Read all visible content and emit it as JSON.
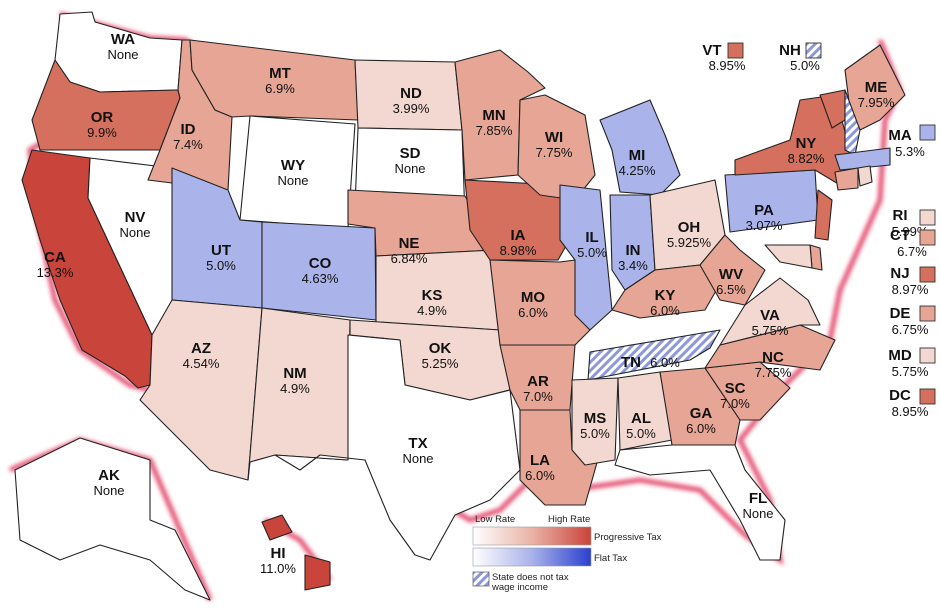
{
  "colors": {
    "none": "#ffffff",
    "flat": "#aab4ea",
    "flat_light": "#cfd4f2",
    "hatch": "#7f8fd6",
    "shadow": "#e0305a",
    "low": "#f3d8d1",
    "mid": "#e6a595",
    "high": "#d5705e",
    "highest": "#c9443a"
  },
  "states": [
    {
      "abbr": "WA",
      "rate": "None",
      "type": "none"
    },
    {
      "abbr": "OR",
      "rate": "9.9%",
      "type": "progressive",
      "level": "high"
    },
    {
      "abbr": "CA",
      "rate": "13.3%",
      "type": "progressive",
      "level": "highest"
    },
    {
      "abbr": "NV",
      "rate": "None",
      "type": "none"
    },
    {
      "abbr": "ID",
      "rate": "7.4%",
      "type": "progressive",
      "level": "mid"
    },
    {
      "abbr": "MT",
      "rate": "6.9%",
      "type": "progressive",
      "level": "mid"
    },
    {
      "abbr": "WY",
      "rate": "None",
      "type": "none"
    },
    {
      "abbr": "UT",
      "rate": "5.0%",
      "type": "flat"
    },
    {
      "abbr": "CO",
      "rate": "4.63%",
      "type": "flat"
    },
    {
      "abbr": "AZ",
      "rate": "4.54%",
      "type": "progressive",
      "level": "low"
    },
    {
      "abbr": "NM",
      "rate": "4.9%",
      "type": "progressive",
      "level": "low"
    },
    {
      "abbr": "ND",
      "rate": "3.99%",
      "type": "progressive",
      "level": "low"
    },
    {
      "abbr": "SD",
      "rate": "None",
      "type": "none"
    },
    {
      "abbr": "NE",
      "rate": "6.84%",
      "type": "progressive",
      "level": "mid"
    },
    {
      "abbr": "KS",
      "rate": "4.9%",
      "type": "progressive",
      "level": "low"
    },
    {
      "abbr": "OK",
      "rate": "5.25%",
      "type": "progressive",
      "level": "low"
    },
    {
      "abbr": "TX",
      "rate": "None",
      "type": "none"
    },
    {
      "abbr": "MN",
      "rate": "7.85%",
      "type": "progressive",
      "level": "mid"
    },
    {
      "abbr": "IA",
      "rate": "8.98%",
      "type": "progressive",
      "level": "high"
    },
    {
      "abbr": "MO",
      "rate": "6.0%",
      "type": "progressive",
      "level": "mid"
    },
    {
      "abbr": "AR",
      "rate": "7.0%",
      "type": "progressive",
      "level": "mid"
    },
    {
      "abbr": "LA",
      "rate": "6.0%",
      "type": "progressive",
      "level": "mid"
    },
    {
      "abbr": "WI",
      "rate": "7.75%",
      "type": "progressive",
      "level": "mid"
    },
    {
      "abbr": "IL",
      "rate": "5.0%",
      "type": "flat"
    },
    {
      "abbr": "MI",
      "rate": "4.25%",
      "type": "flat"
    },
    {
      "abbr": "IN",
      "rate": "3.4%",
      "type": "flat"
    },
    {
      "abbr": "OH",
      "rate": "5.925%",
      "type": "progressive",
      "level": "low"
    },
    {
      "abbr": "KY",
      "rate": "6.0%",
      "type": "progressive",
      "level": "mid"
    },
    {
      "abbr": "TN",
      "rate": "6.0%",
      "type": "no_wage_tax"
    },
    {
      "abbr": "MS",
      "rate": "5.0%",
      "type": "progressive",
      "level": "low"
    },
    {
      "abbr": "AL",
      "rate": "5.0%",
      "type": "progressive",
      "level": "low"
    },
    {
      "abbr": "GA",
      "rate": "6.0%",
      "type": "progressive",
      "level": "mid"
    },
    {
      "abbr": "FL",
      "rate": "None",
      "type": "none"
    },
    {
      "abbr": "SC",
      "rate": "7.0%",
      "type": "progressive",
      "level": "mid"
    },
    {
      "abbr": "NC",
      "rate": "7.75%",
      "type": "progressive",
      "level": "mid"
    },
    {
      "abbr": "VA",
      "rate": "5.75%",
      "type": "progressive",
      "level": "low"
    },
    {
      "abbr": "WV",
      "rate": "6.5%",
      "type": "progressive",
      "level": "mid"
    },
    {
      "abbr": "PA",
      "rate": "3.07%",
      "type": "flat"
    },
    {
      "abbr": "NY",
      "rate": "8.82%",
      "type": "progressive",
      "level": "high"
    },
    {
      "abbr": "ME",
      "rate": "7.95%",
      "type": "progressive",
      "level": "mid"
    },
    {
      "abbr": "AK",
      "rate": "None",
      "type": "none"
    },
    {
      "abbr": "HI",
      "rate": "11.0%",
      "type": "progressive",
      "level": "highest"
    }
  ],
  "sidebar_states": [
    {
      "abbr": "VT",
      "rate": "8.95%",
      "type": "progressive",
      "level": "high"
    },
    {
      "abbr": "NH",
      "rate": "5.0%",
      "type": "no_wage_tax"
    },
    {
      "abbr": "MA",
      "rate": "5.3%",
      "type": "flat"
    },
    {
      "abbr": "RI",
      "rate": "5.99%",
      "type": "progressive",
      "level": "low"
    },
    {
      "abbr": "CT",
      "rate": "6.7%",
      "type": "progressive",
      "level": "mid"
    },
    {
      "abbr": "NJ",
      "rate": "8.97%",
      "type": "progressive",
      "level": "high"
    },
    {
      "abbr": "DE",
      "rate": "6.75%",
      "type": "progressive",
      "level": "mid"
    },
    {
      "abbr": "MD",
      "rate": "5.75%",
      "type": "progressive",
      "level": "low"
    },
    {
      "abbr": "DC",
      "rate": "8.95%",
      "type": "progressive",
      "level": "high"
    }
  ],
  "legend": {
    "low_rate": "Low Rate",
    "high_rate": "High Rate",
    "progressive": "Progressive Tax",
    "flat": "Flat Tax",
    "no_wage_tax_line1": "State does not tax",
    "no_wage_tax_line2": "wage income"
  }
}
